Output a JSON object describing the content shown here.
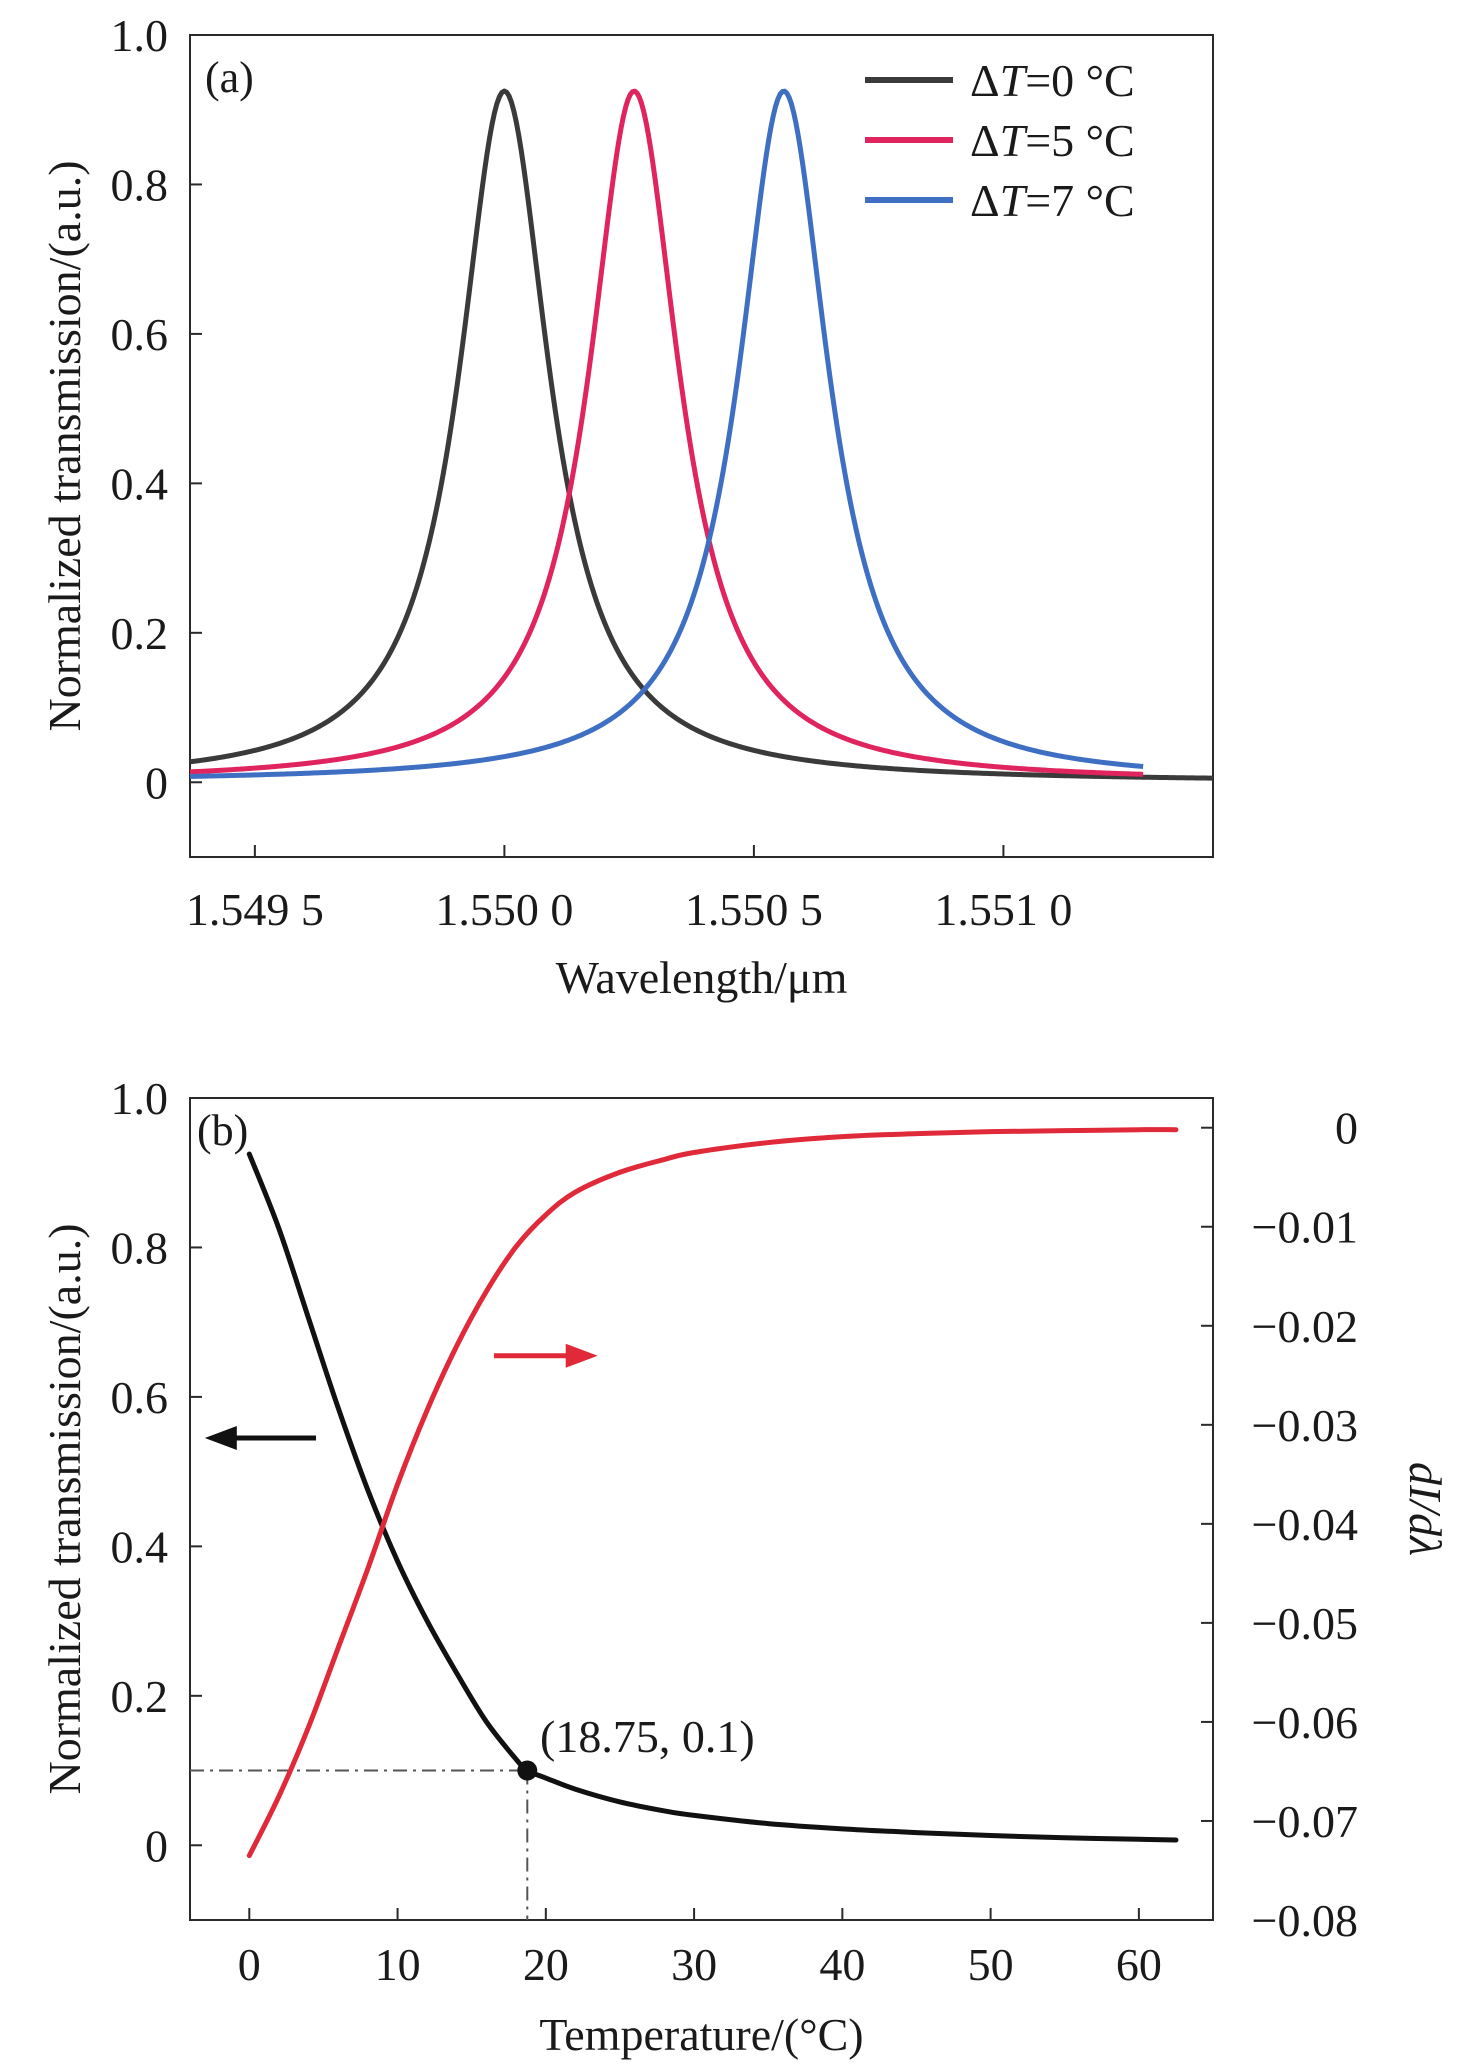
{
  "chart_data": [
    {
      "type": "line",
      "panel_label": "(a)",
      "xlabel": "Wavelength/μm",
      "ylabel": "Normalized transmission/(a.u.)",
      "xlim": [
        1.54937,
        1.55142
      ],
      "ylim": [
        -0.1,
        1.0
      ],
      "x_ticks": [
        1.5495,
        1.55,
        1.5505,
        1.551
      ],
      "x_tick_labels": [
        "1.549 5",
        "1.550 0",
        "1.550 5",
        "1.551 0"
      ],
      "y_ticks": [
        0,
        0.2,
        0.4,
        0.6,
        0.8,
        1.0
      ],
      "y_tick_labels": [
        "0",
        "0.2",
        "0.4",
        "0.6",
        "0.8",
        "1.0"
      ],
      "grid": false,
      "legend_position": "top-right",
      "curve_model": "lorentzian",
      "series": [
        {
          "legend_prefix": "Δ",
          "legend_var": "T",
          "legend_suffix": "=0 °C",
          "color": "#3a3a3a",
          "center": 1.55,
          "peak": 0.925,
          "hwhm": 0.00011,
          "x_range": [
            1.54937,
            1.55142
          ]
        },
        {
          "legend_prefix": "Δ",
          "legend_var": "T",
          "legend_suffix": "=5 °C",
          "color": "#e0245e",
          "center": 1.55026,
          "peak": 0.925,
          "hwhm": 0.00011,
          "x_range": [
            1.54937,
            1.55128
          ]
        },
        {
          "legend_prefix": "Δ",
          "legend_var": "T",
          "legend_suffix": "=7 °C",
          "color": "#3f6fc2",
          "center": 1.55056,
          "peak": 0.925,
          "hwhm": 0.00011,
          "x_range": [
            1.54937,
            1.55128
          ]
        }
      ]
    },
    {
      "type": "line",
      "panel_label": "(b)",
      "xlabel": "Temperature/(°C)",
      "ylabel": "Normalized transmission/(a.u.)",
      "y2label": "dI/dλ",
      "xlim": [
        -4,
        65
      ],
      "ylim": [
        -0.1,
        1.0
      ],
      "y2lim": [
        -0.08,
        0.003
      ],
      "x_ticks": [
        0,
        10,
        20,
        30,
        40,
        50,
        60
      ],
      "x_tick_labels": [
        "0",
        "10",
        "20",
        "30",
        "40",
        "50",
        "60"
      ],
      "y_ticks": [
        0,
        0.2,
        0.4,
        0.6,
        0.8,
        1.0
      ],
      "y_tick_labels": [
        "0",
        "0.2",
        "0.4",
        "0.6",
        "0.8",
        "1.0"
      ],
      "y2_ticks": [
        0,
        -0.01,
        -0.02,
        -0.03,
        -0.04,
        -0.05,
        -0.06,
        -0.07,
        -0.08
      ],
      "y2_tick_labels": [
        "0",
        "−0.01",
        "−0.02",
        "−0.03",
        "−0.04",
        "−0.05",
        "−0.06",
        "−0.07",
        "−0.08"
      ],
      "grid": false,
      "series": [
        {
          "axis": "left",
          "color": "#111111",
          "x": [
            0,
            2,
            4,
            6,
            8,
            10,
            12,
            14,
            16,
            18,
            18.75,
            20,
            22,
            25,
            28,
            30,
            35,
            40,
            45,
            50,
            55,
            60,
            62.5
          ],
          "y": [
            0.925,
            0.825,
            0.705,
            0.585,
            0.475,
            0.38,
            0.3,
            0.23,
            0.165,
            0.115,
            0.1,
            0.09,
            0.075,
            0.058,
            0.046,
            0.04,
            0.029,
            0.022,
            0.017,
            0.013,
            0.01,
            0.008,
            0.007
          ]
        },
        {
          "axis": "right",
          "color": "#e02a3a",
          "x": [
            0,
            2,
            4,
            6,
            8,
            10,
            12,
            14,
            16,
            18,
            20,
            22,
            25,
            28,
            30,
            35,
            40,
            45,
            50,
            55,
            60,
            62.5
          ],
          "y": [
            -0.0735,
            -0.0675,
            -0.0605,
            -0.0525,
            -0.0445,
            -0.036,
            -0.0285,
            -0.022,
            -0.0165,
            -0.012,
            -0.0088,
            -0.0065,
            -0.0045,
            -0.0032,
            -0.0025,
            -0.0015,
            -0.0009,
            -0.0006,
            -0.0004,
            -0.0003,
            -0.0002,
            -0.0002
          ]
        }
      ],
      "annotation": {
        "label": "(18.75, 0.1)",
        "x": 18.75,
        "y": 0.1
      },
      "arrows": [
        {
          "direction": "left",
          "axis": "left",
          "x_from": 4.5,
          "x_to": -3,
          "y": 0.545,
          "color": "#111111"
        },
        {
          "direction": "right",
          "axis": "left",
          "x_from": 16.5,
          "x_to": 23.5,
          "y": 0.655,
          "color": "#e02a3a"
        }
      ]
    }
  ]
}
